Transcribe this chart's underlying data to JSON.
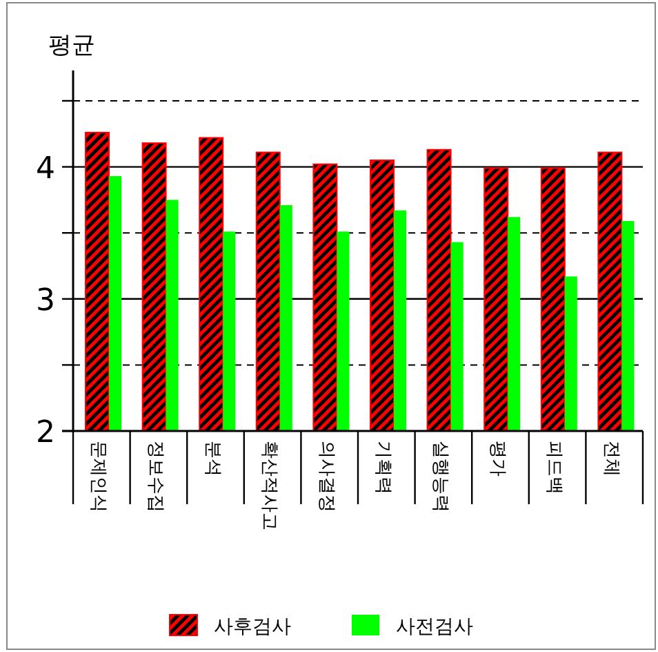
{
  "chart_data": {
    "type": "bar",
    "ylabel": "평균",
    "categories": [
      "문제인식",
      "정보수집",
      "분석",
      "확산적사고",
      "의사결정",
      "기획력",
      "실행능력",
      "평가",
      "피드백",
      "전체"
    ],
    "series": [
      {
        "name": "사후검사",
        "color": "#ff0000",
        "values": [
          4.26,
          4.18,
          4.22,
          4.11,
          4.02,
          4.05,
          4.13,
          3.99,
          3.99,
          4.11
        ]
      },
      {
        "name": "사전검사",
        "color": "#00ff00",
        "values": [
          3.93,
          3.75,
          3.51,
          3.71,
          3.51,
          3.67,
          3.43,
          3.62,
          3.17,
          3.59
        ]
      }
    ],
    "ylim": [
      2,
      4.73
    ],
    "yticks": [
      2,
      {
        "value": 2.5,
        "label": null
      },
      3,
      {
        "value": 3.5,
        "label": null
      },
      4,
      {
        "value": 4.5,
        "label": null
      }
    ],
    "grid": "y",
    "legend": "bottom"
  }
}
